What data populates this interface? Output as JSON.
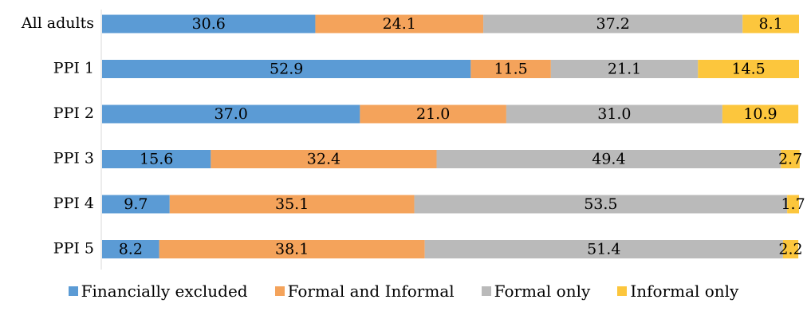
{
  "chart_data": {
    "type": "bar",
    "orientation": "horizontal",
    "stacked": true,
    "categories": [
      "All adults",
      "PPI 1",
      "PPI 2",
      "PPI 3",
      "PPI 4",
      "PPI 5"
    ],
    "series": [
      {
        "name": "Financially excluded",
        "color": "#5B9BD5",
        "values": [
          30.6,
          52.9,
          37.0,
          15.6,
          9.7,
          8.2
        ],
        "labels": [
          "30.6",
          "52.9",
          "37.0",
          "15.6",
          "9.7",
          "8.2"
        ]
      },
      {
        "name": "Formal and Informal",
        "color": "#F4A35B",
        "values": [
          24.1,
          11.5,
          21.0,
          32.4,
          35.1,
          38.1
        ],
        "labels": [
          "24.1",
          "11.5",
          "21.0",
          "32.4",
          "35.1",
          "38.1"
        ]
      },
      {
        "name": "Formal only",
        "color": "#BABABA",
        "values": [
          37.2,
          21.1,
          31.0,
          49.4,
          53.5,
          51.4
        ],
        "labels": [
          "37.2",
          "21.1",
          "31.0",
          "49.4",
          "53.5",
          "51.4"
        ]
      },
      {
        "name": "Informal only",
        "color": "#FCC63D",
        "values": [
          8.1,
          14.5,
          10.9,
          2.7,
          1.7,
          2.2
        ],
        "labels": [
          "8.1",
          "14.5",
          "10.9",
          "2.7",
          "1.7",
          "2.2"
        ]
      }
    ],
    "xlim": [
      0,
      100
    ],
    "grid": false,
    "legend_position": "bottom",
    "title": "",
    "xlabel": "",
    "ylabel": ""
  }
}
